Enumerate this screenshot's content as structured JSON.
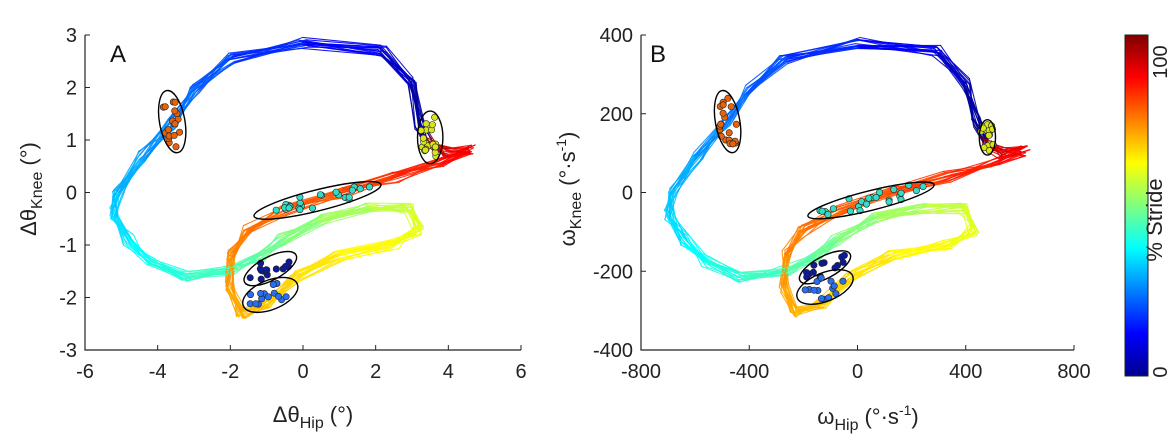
{
  "chart_data": [
    {
      "type": "line",
      "panel_label": "A",
      "xlabel": {
        "symbol": "Δθ",
        "sub": "Hip",
        "unit": "(°)"
      },
      "ylabel": {
        "symbol": "Δθ",
        "sub": "Knee",
        "unit": "(°)"
      },
      "xlim": [
        -6,
        6
      ],
      "ylim": [
        -3,
        3
      ],
      "xticks": [
        -6,
        -4,
        -2,
        0,
        2,
        4,
        6
      ],
      "yticks": [
        -3,
        -2,
        -1,
        0,
        1,
        2,
        3
      ],
      "grid": false,
      "trajectory": {
        "stride_percent_colormap": "jet",
        "keypoints": [
          [
            3.4,
            1.0,
            0
          ],
          [
            3.2,
            1.3,
            2
          ],
          [
            3.0,
            2.1,
            5
          ],
          [
            2.2,
            2.7,
            9
          ],
          [
            0.0,
            2.85,
            14
          ],
          [
            -2.0,
            2.55,
            19
          ],
          [
            -3.0,
            2.0,
            22
          ],
          [
            -3.6,
            1.3,
            25
          ],
          [
            -4.4,
            0.7,
            28
          ],
          [
            -5.1,
            0.0,
            31
          ],
          [
            -5.2,
            -0.4,
            33
          ],
          [
            -4.8,
            -0.9,
            36
          ],
          [
            -4.2,
            -1.3,
            39
          ],
          [
            -3.2,
            -1.6,
            42
          ],
          [
            -2.0,
            -1.5,
            45
          ],
          [
            -1.2,
            -1.2,
            47
          ],
          [
            -0.6,
            -0.9,
            49
          ],
          [
            0.5,
            -0.5,
            52
          ],
          [
            1.8,
            -0.3,
            55
          ],
          [
            2.9,
            -0.3,
            58
          ],
          [
            3.2,
            -0.7,
            60
          ],
          [
            2.5,
            -1.0,
            62
          ],
          [
            1.0,
            -1.2,
            64
          ],
          [
            -0.2,
            -1.6,
            66
          ],
          [
            -1.0,
            -2.1,
            68
          ],
          [
            -1.7,
            -2.3,
            70
          ],
          [
            -2.0,
            -1.8,
            72
          ],
          [
            -2.0,
            -1.2,
            74
          ],
          [
            -1.5,
            -0.7,
            76
          ],
          [
            -0.5,
            -0.35,
            78
          ],
          [
            1.0,
            0.0,
            80
          ],
          [
            2.5,
            0.3,
            83
          ],
          [
            3.8,
            0.55,
            86
          ],
          [
            4.6,
            0.8,
            88
          ],
          [
            4.0,
            0.75,
            90
          ],
          [
            3.6,
            0.9,
            94
          ],
          [
            3.4,
            1.0,
            100
          ]
        ]
      },
      "ellipses": [
        {
          "cx": -3.6,
          "cy": 1.35,
          "rx": 0.35,
          "ry": 0.6,
          "angle_deg": 10,
          "fill": "#e8620c",
          "n_points": 20
        },
        {
          "cx": 3.5,
          "cy": 1.05,
          "rx": 0.35,
          "ry": 0.5,
          "angle_deg": 0,
          "fill": "#d8e51c",
          "n_points": 20
        },
        {
          "cx": 0.4,
          "cy": -0.15,
          "rx": 1.8,
          "ry": 0.2,
          "angle_deg": 14,
          "fill": "#34dcc8",
          "n_points": 24
        },
        {
          "cx": -0.9,
          "cy": -1.45,
          "rx": 0.8,
          "ry": 0.22,
          "angle_deg": 28,
          "fill": "#0d1a9a",
          "n_points": 14
        },
        {
          "cx": -0.9,
          "cy": -1.95,
          "rx": 0.8,
          "ry": 0.28,
          "angle_deg": 22,
          "fill": "#2a6ef0",
          "n_points": 14
        }
      ]
    },
    {
      "type": "line",
      "panel_label": "B",
      "xlabel": {
        "symbol": "ω",
        "sub": "Hip",
        "unit": "(°·s",
        "sup": "-1",
        "close": ")"
      },
      "ylabel": {
        "symbol": "ω",
        "sub": "Knee",
        "unit": "(°·s",
        "sup": "-1",
        "close": ")"
      },
      "xlim": [
        -800,
        800
      ],
      "ylim": [
        -400,
        400
      ],
      "xticks": [
        -800,
        -400,
        0,
        400,
        800
      ],
      "yticks": [
        -400,
        -200,
        0,
        200,
        400
      ],
      "grid": false,
      "trajectory": {
        "stride_percent_colormap": "jet",
        "keypoints": [
          [
            470,
            130,
            0
          ],
          [
            440,
            180,
            2
          ],
          [
            400,
            280,
            5
          ],
          [
            290,
            360,
            9
          ],
          [
            0,
            380,
            14
          ],
          [
            -270,
            340,
            19
          ],
          [
            -400,
            260,
            22
          ],
          [
            -480,
            180,
            25
          ],
          [
            -590,
            90,
            28
          ],
          [
            -680,
            0,
            31
          ],
          [
            -695,
            -55,
            33
          ],
          [
            -640,
            -120,
            36
          ],
          [
            -560,
            -175,
            39
          ],
          [
            -430,
            -215,
            42
          ],
          [
            -270,
            -200,
            45
          ],
          [
            -160,
            -160,
            47
          ],
          [
            -80,
            -120,
            49
          ],
          [
            70,
            -65,
            52
          ],
          [
            240,
            -40,
            55
          ],
          [
            390,
            -40,
            58
          ],
          [
            430,
            -95,
            60
          ],
          [
            330,
            -135,
            62
          ],
          [
            130,
            -160,
            64
          ],
          [
            -25,
            -215,
            66
          ],
          [
            -130,
            -280,
            68
          ],
          [
            -230,
            -305,
            70
          ],
          [
            -270,
            -240,
            72
          ],
          [
            -265,
            -160,
            74
          ],
          [
            -200,
            -95,
            76
          ],
          [
            -65,
            -45,
            78
          ],
          [
            130,
            0,
            80
          ],
          [
            330,
            40,
            83
          ],
          [
            510,
            75,
            86
          ],
          [
            620,
            105,
            88
          ],
          [
            540,
            100,
            90
          ],
          [
            480,
            120,
            94
          ],
          [
            470,
            130,
            100
          ]
        ]
      },
      "ellipses": [
        {
          "cx": -480,
          "cy": 180,
          "rx": 45,
          "ry": 80,
          "angle_deg": 10,
          "fill": "#e8620c",
          "n_points": 20
        },
        {
          "cx": 480,
          "cy": 140,
          "rx": 30,
          "ry": 45,
          "angle_deg": 0,
          "fill": "#d8e51c",
          "n_points": 20
        },
        {
          "cx": 50,
          "cy": -20,
          "rx": 240,
          "ry": 25,
          "angle_deg": 14,
          "fill": "#34dcc8",
          "n_points": 24
        },
        {
          "cx": -120,
          "cy": -190,
          "rx": 105,
          "ry": 28,
          "angle_deg": 28,
          "fill": "#0d1a9a",
          "n_points": 14
        },
        {
          "cx": -120,
          "cy": -240,
          "rx": 110,
          "ry": 36,
          "angle_deg": 22,
          "fill": "#2a6ef0",
          "n_points": 14
        }
      ]
    }
  ],
  "colorbar": {
    "label": "% Stride",
    "min_label": "0",
    "max_label": "100",
    "colormap": "jet"
  }
}
